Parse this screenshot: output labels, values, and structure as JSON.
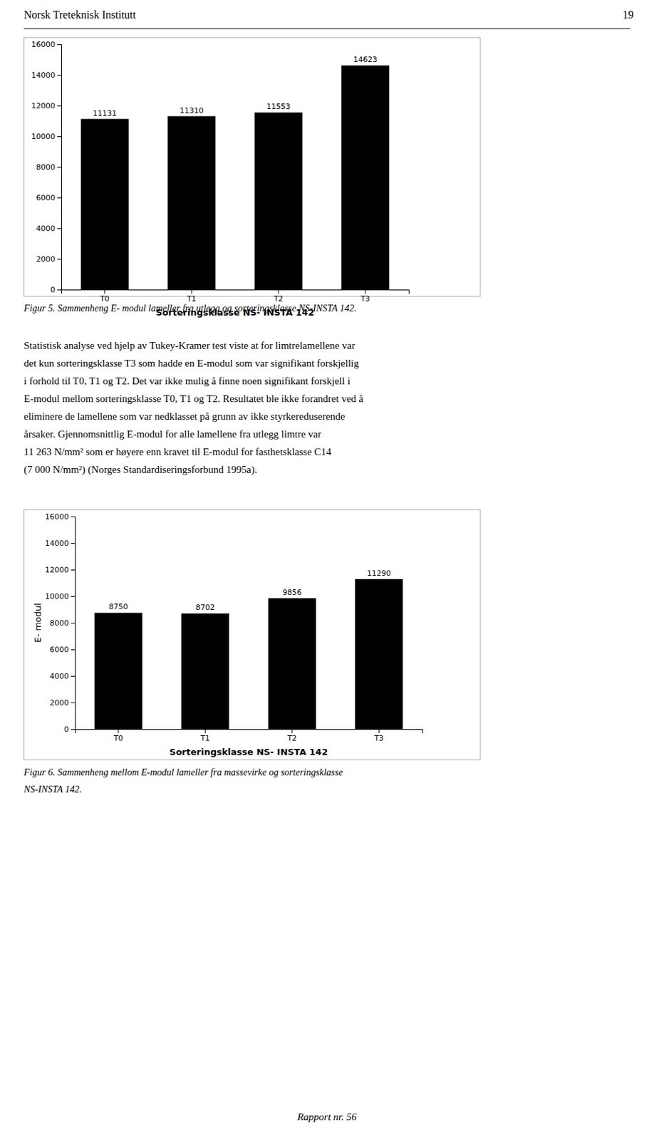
{
  "chart_data": [
    {
      "type": "bar",
      "categories": [
        "T0",
        "T1",
        "T2",
        "T3"
      ],
      "values": [
        11131,
        11310,
        11553,
        14623
      ],
      "color": "#000000",
      "xlabel": "Sorteringsklasse NS- INSTA 142",
      "ylim": [
        0,
        16000
      ],
      "yticks": [
        0,
        2000,
        4000,
        6000,
        8000,
        10000,
        12000,
        14000,
        16000
      ],
      "grid": false,
      "data_labels": true,
      "caption": [
        "Figur 5. Sammenheng E- modul lameller fra utlegg og sorteringsklasse NS-INSTA 142."
      ]
    },
    {
      "type": "bar",
      "categories": [
        "T0",
        "T1",
        "T2",
        "T3"
      ],
      "values": [
        8750,
        8702,
        9856,
        11290
      ],
      "color": "#000000",
      "xlabel": "Sorteringsklasse NS- INSTA 142",
      "ylabel": "E- modul",
      "ylim": [
        0,
        16000
      ],
      "yticks": [
        0,
        2000,
        4000,
        6000,
        8000,
        10000,
        12000,
        14000,
        16000
      ],
      "grid": false,
      "data_labels": true,
      "caption": [
        "Figur 6. Sammenheng mellom E-modul lameller fra massevirke og sorteringsklasse",
        "NS-INSTA 142."
      ]
    }
  ],
  "header_left": "Norsk Treteknisk Institutt",
  "header_right": "19",
  "text_body_lines": [
    "Statistisk analyse ved hjelp av Tukey-Kramer test viste at for limtrelamellene var",
    "det kun sorteringsklasse T3 som hadde en E-modul som var signifikant forskjellig",
    "i forhold til T0, T1 og T2. Det var ikke mulig å finne noen signifikant forskjell i",
    "E-modul mellom sorteringsklasse T0, T1 og T2. Resultatet ble ikke forandret ved å",
    "eliminere de lamellene som var nedklasset på grunn av ikke styrkereduserende",
    "årsaker. Gjennomsnittlig E-modul for alle lamellene fra utlegg limtre var",
    "11 263 N/mm² som er høyere enn kravet til E-modul for fasthetsklasse C14",
    "(7 000 N/mm²) (Norges Standardiseringsforbund 1995a)."
  ],
  "footer": "Rapport nr. 56"
}
